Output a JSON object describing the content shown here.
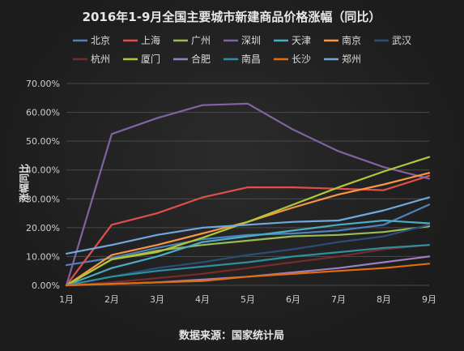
{
  "chart_data": {
    "type": "line",
    "title": "2016年1-9月全国主要城市新建商品价格涨幅（同比）",
    "ylabel": "涨幅同比",
    "source": "数据来源：国家统计局",
    "categories": [
      "1月",
      "2月",
      "3月",
      "4月",
      "5月",
      "6月",
      "7月",
      "8月",
      "9月"
    ],
    "y_ticks": [
      "0.00%",
      "10.00%",
      "20.00%",
      "30.00%",
      "40.00%",
      "50.00%",
      "60.00%",
      "70.00%"
    ],
    "ylim": [
      0,
      70
    ],
    "grid": true,
    "legend_position": "top",
    "series": [
      {
        "name": "北京",
        "color": "#4f81bd",
        "values": [
          7.0,
          9.5,
          13.0,
          16.0,
          17.5,
          18.0,
          19.0,
          21.0,
          28.0
        ]
      },
      {
        "name": "上海",
        "color": "#e0504a",
        "values": [
          0.0,
          21.0,
          25.0,
          30.5,
          34.0,
          34.0,
          33.5,
          33.0,
          38.0
        ]
      },
      {
        "name": "广州",
        "color": "#9bbb59",
        "values": [
          0.0,
          9.0,
          12.0,
          14.0,
          15.5,
          17.0,
          17.5,
          18.5,
          20.5
        ]
      },
      {
        "name": "深圳",
        "color": "#8064a2",
        "values": [
          0.0,
          52.5,
          58.0,
          62.5,
          63.0,
          54.0,
          46.5,
          41.0,
          37.0
        ]
      },
      {
        "name": "天津",
        "color": "#4bacc6",
        "values": [
          0.0,
          6.0,
          10.0,
          15.0,
          17.0,
          19.0,
          21.0,
          22.5,
          21.5
        ]
      },
      {
        "name": "南京",
        "color": "#f79646",
        "values": [
          0.0,
          10.5,
          14.0,
          18.0,
          22.0,
          27.0,
          31.5,
          35.0,
          39.0
        ]
      },
      {
        "name": "武汉",
        "color": "#2c4d75",
        "values": [
          0.0,
          3.0,
          6.0,
          8.0,
          10.5,
          12.5,
          15.0,
          17.0,
          21.0
        ]
      },
      {
        "name": "杭州",
        "color": "#772c2a",
        "values": [
          0.0,
          1.0,
          2.5,
          4.0,
          6.0,
          8.0,
          10.0,
          12.5,
          14.0
        ]
      },
      {
        "name": "厦门",
        "color": "#b2c73a",
        "values": [
          0.0,
          9.0,
          11.5,
          16.5,
          22.0,
          28.0,
          34.0,
          39.5,
          44.5
        ]
      },
      {
        "name": "合肥",
        "color": "#9a7fc4",
        "values": [
          0.0,
          0.5,
          1.0,
          2.0,
          3.0,
          4.5,
          6.0,
          8.0,
          10.0
        ]
      },
      {
        "name": "南昌",
        "color": "#2e8f9f",
        "values": [
          0.0,
          3.0,
          5.0,
          6.5,
          8.0,
          10.0,
          11.5,
          13.0,
          14.0
        ]
      },
      {
        "name": "长沙",
        "color": "#e46c0a",
        "values": [
          0.0,
          0.5,
          1.0,
          1.5,
          3.0,
          4.0,
          5.0,
          6.0,
          7.5
        ]
      },
      {
        "name": "郑州",
        "color": "#6fa8dc",
        "values": [
          11.0,
          14.0,
          17.5,
          20.0,
          21.0,
          22.0,
          22.5,
          26.0,
          30.5
        ]
      }
    ]
  }
}
